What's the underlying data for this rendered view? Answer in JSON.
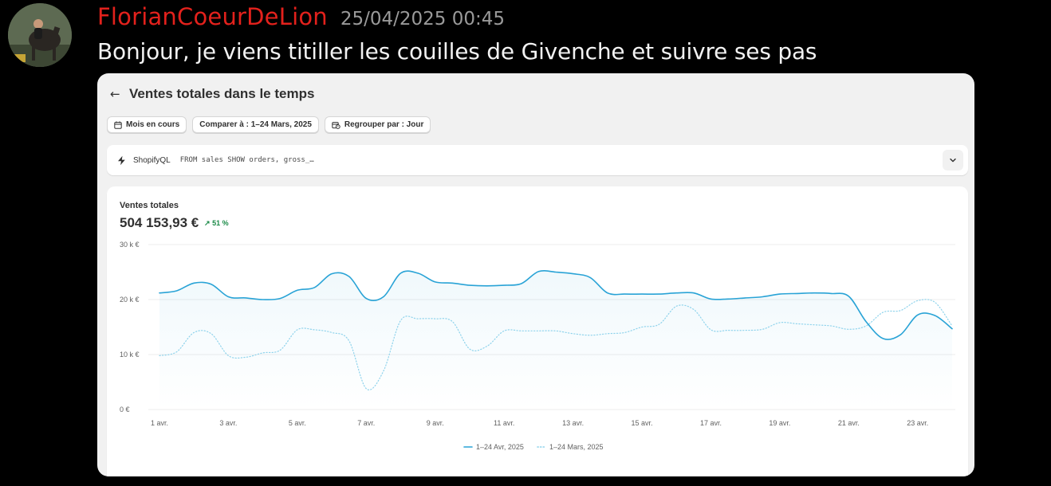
{
  "message": {
    "username": "FlorianCoeurDeLion",
    "timestamp": "25/04/2025 00:45",
    "text": "Bonjour, je viens titiller les couilles de Givenche et suivre ses pas",
    "username_color": "#e3211c"
  },
  "report": {
    "back_icon": "arrow-left-icon",
    "title": "Ventes totales dans le temps",
    "filters": [
      {
        "label": "Mois en cours",
        "icon": "calendar-icon"
      },
      {
        "label": "Comparer à : 1–24 Mars, 2025",
        "icon": ""
      },
      {
        "label": "Regrouper par : Jour",
        "icon": "calendar-clock-icon"
      }
    ],
    "shopifyql": {
      "icon": "lightning-icon",
      "name": "ShopifyQL",
      "query": "FROM sales SHOW orders, gross_…",
      "toggle_icon": "chevron-down-icon"
    },
    "metric": {
      "label": "Ventes totales",
      "value": "504 153,93 €",
      "change": "51 %",
      "change_icon": "arrow-up-right-icon",
      "change_color": "#1a8a47"
    }
  },
  "chart_data": {
    "type": "line",
    "y_tick_labels": [
      "0 €",
      "10 k €",
      "20 k €",
      "30 k €"
    ],
    "y_ticks": [
      0,
      10000,
      20000,
      30000
    ],
    "ylim": [
      0,
      30000
    ],
    "x": [
      1,
      1.5,
      2,
      2.5,
      3,
      3.5,
      4,
      4.5,
      5,
      5.5,
      6,
      6.5,
      7,
      7.5,
      8,
      8.5,
      9,
      9.5,
      10,
      10.5,
      11,
      11.5,
      12,
      12.5,
      13,
      13.5,
      14,
      14.5,
      15,
      15.5,
      16,
      16.5,
      17,
      17.5,
      18,
      18.5,
      19,
      19.5,
      20,
      20.5,
      21,
      21.5,
      22,
      22.5,
      23,
      23.5,
      24
    ],
    "x_tick_labels": [
      "1 avr.",
      "3 avr.",
      "5 avr.",
      "7 avr.",
      "9 avr.",
      "11 avr.",
      "13 avr.",
      "15 avr.",
      "17 avr.",
      "19 avr.",
      "21 avr.",
      "23 avr."
    ],
    "x_ticks": [
      1,
      3,
      5,
      7,
      9,
      11,
      13,
      15,
      17,
      19,
      21,
      23
    ],
    "xlim": [
      1,
      24
    ],
    "grid": true,
    "legend_position": "bottom-center",
    "series": [
      {
        "name": "1–24 Avr, 2025",
        "style": "solid",
        "color": "#29a3d6",
        "values": [
          21200,
          21600,
          23000,
          22800,
          20500,
          20300,
          20000,
          20200,
          21700,
          22200,
          24700,
          24200,
          20200,
          20500,
          24800,
          24800,
          23200,
          23000,
          22600,
          22500,
          22600,
          22900,
          25100,
          25000,
          24700,
          24000,
          21200,
          21000,
          21000,
          21000,
          21200,
          21200,
          20100,
          20100,
          20300,
          20500,
          21000,
          21100,
          21200,
          21100,
          20600,
          16000,
          12900,
          13600,
          17200,
          17100,
          14700
        ]
      },
      {
        "name": "1–24 Mars, 2025",
        "style": "dotted",
        "color": "#8fd3ec",
        "values": [
          9800,
          10500,
          14000,
          13800,
          9800,
          9500,
          10300,
          10800,
          14500,
          14500,
          14000,
          12500,
          3800,
          7000,
          16200,
          16500,
          16500,
          16000,
          11000,
          11500,
          14300,
          14300,
          14300,
          14300,
          13800,
          13500,
          13800,
          14000,
          15000,
          15500,
          18800,
          18200,
          14500,
          14400,
          14400,
          14600,
          15800,
          15600,
          15400,
          15200,
          14600,
          15200,
          17700,
          18000,
          19800,
          19500,
          15200
        ]
      }
    ]
  }
}
